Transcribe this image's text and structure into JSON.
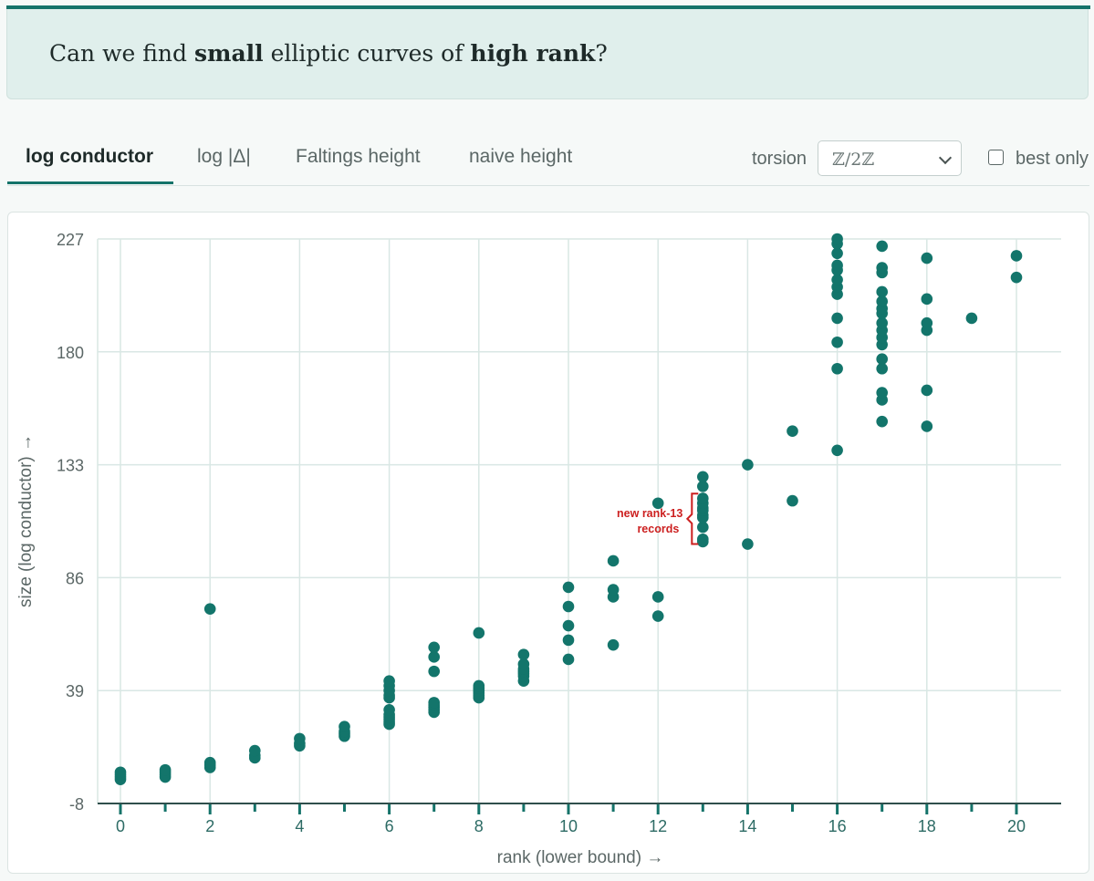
{
  "question": {
    "part1": "Can we find ",
    "bold1": "small",
    "part2": " elliptic curves of ",
    "bold2": "high rank",
    "part3": "?"
  },
  "tabs": [
    {
      "label": "log conductor",
      "active": true
    },
    {
      "label": "log |Δ|",
      "active": false
    },
    {
      "label": "Faltings height",
      "active": false
    },
    {
      "label": "naive height",
      "active": false
    }
  ],
  "controls": {
    "torsion_label": "torsion",
    "torsion_value": "ℤ/2ℤ",
    "best_only_label": "best only",
    "best_only_checked": false
  },
  "colors": {
    "accent": "#14736a",
    "point": "#13756b",
    "annotation": "#cc1f1f"
  },
  "chart_data": {
    "type": "scatter",
    "xlabel": "rank (lower bound) →",
    "ylabel": "size (log conductor) →",
    "xlim": [
      -0.5,
      21
    ],
    "ylim": [
      -8,
      227
    ],
    "xticks": [
      0,
      2,
      4,
      6,
      8,
      10,
      12,
      14,
      16,
      18,
      20
    ],
    "xminor": [
      1,
      3,
      5,
      7,
      9,
      11,
      13,
      15,
      17,
      19
    ],
    "yticks": [
      -8,
      39,
      86,
      133,
      180,
      227
    ],
    "grid": true,
    "annotation": {
      "text_line1": "new rank-13",
      "text_line2": "records",
      "x": 13,
      "y_low": 100,
      "y_high": 121
    },
    "points": [
      [
        0,
        2
      ],
      [
        0,
        3
      ],
      [
        0,
        4
      ],
      [
        0,
        5
      ],
      [
        1,
        3
      ],
      [
        1,
        4
      ],
      [
        1,
        5
      ],
      [
        1,
        6
      ],
      [
        2,
        7
      ],
      [
        2,
        8
      ],
      [
        2,
        9
      ],
      [
        2,
        73
      ],
      [
        3,
        11
      ],
      [
        3,
        12
      ],
      [
        3,
        14
      ],
      [
        4,
        16
      ],
      [
        4,
        17
      ],
      [
        4,
        19
      ],
      [
        5,
        20
      ],
      [
        5,
        21
      ],
      [
        5,
        22
      ],
      [
        5,
        24
      ],
      [
        6,
        25
      ],
      [
        6,
        26
      ],
      [
        6,
        27
      ],
      [
        6,
        28
      ],
      [
        6,
        29
      ],
      [
        6,
        31
      ],
      [
        6,
        36
      ],
      [
        6,
        37
      ],
      [
        6,
        39
      ],
      [
        6,
        41
      ],
      [
        6,
        43
      ],
      [
        7,
        30
      ],
      [
        7,
        31
      ],
      [
        7,
        32
      ],
      [
        7,
        33
      ],
      [
        7,
        34
      ],
      [
        7,
        47
      ],
      [
        7,
        53
      ],
      [
        7,
        57
      ],
      [
        8,
        36
      ],
      [
        8,
        37
      ],
      [
        8,
        38
      ],
      [
        8,
        39
      ],
      [
        8,
        40
      ],
      [
        8,
        41
      ],
      [
        8,
        63
      ],
      [
        9,
        43
      ],
      [
        9,
        45
      ],
      [
        9,
        46
      ],
      [
        9,
        47
      ],
      [
        9,
        48
      ],
      [
        9,
        50
      ],
      [
        9,
        54
      ],
      [
        10,
        52
      ],
      [
        10,
        60
      ],
      [
        10,
        66
      ],
      [
        10,
        74
      ],
      [
        10,
        82
      ],
      [
        11,
        58
      ],
      [
        11,
        78
      ],
      [
        11,
        81
      ],
      [
        11,
        93
      ],
      [
        12,
        70
      ],
      [
        12,
        78
      ],
      [
        12,
        117
      ],
      [
        13,
        101
      ],
      [
        13,
        102
      ],
      [
        13,
        107
      ],
      [
        13,
        111
      ],
      [
        13,
        112
      ],
      [
        13,
        114
      ],
      [
        13,
        115
      ],
      [
        13,
        117
      ],
      [
        13,
        119
      ],
      [
        13,
        124
      ],
      [
        13,
        128
      ],
      [
        14,
        100
      ],
      [
        14,
        133
      ],
      [
        15,
        118
      ],
      [
        15,
        147
      ],
      [
        16,
        139
      ],
      [
        16,
        173
      ],
      [
        16,
        184
      ],
      [
        16,
        194
      ],
      [
        16,
        204
      ],
      [
        16,
        207
      ],
      [
        16,
        210
      ],
      [
        16,
        214
      ],
      [
        16,
        216
      ],
      [
        16,
        221
      ],
      [
        16,
        225
      ],
      [
        16,
        227
      ],
      [
        17,
        151
      ],
      [
        17,
        160
      ],
      [
        17,
        163
      ],
      [
        17,
        173
      ],
      [
        17,
        177
      ],
      [
        17,
        183
      ],
      [
        17,
        186
      ],
      [
        17,
        189
      ],
      [
        17,
        192
      ],
      [
        17,
        196
      ],
      [
        17,
        198
      ],
      [
        17,
        201
      ],
      [
        17,
        205
      ],
      [
        17,
        213
      ],
      [
        17,
        215
      ],
      [
        17,
        224
      ],
      [
        18,
        149
      ],
      [
        18,
        164
      ],
      [
        18,
        189
      ],
      [
        18,
        192
      ],
      [
        18,
        202
      ],
      [
        18,
        219
      ],
      [
        19,
        194
      ],
      [
        20,
        211
      ],
      [
        20,
        220
      ]
    ]
  }
}
